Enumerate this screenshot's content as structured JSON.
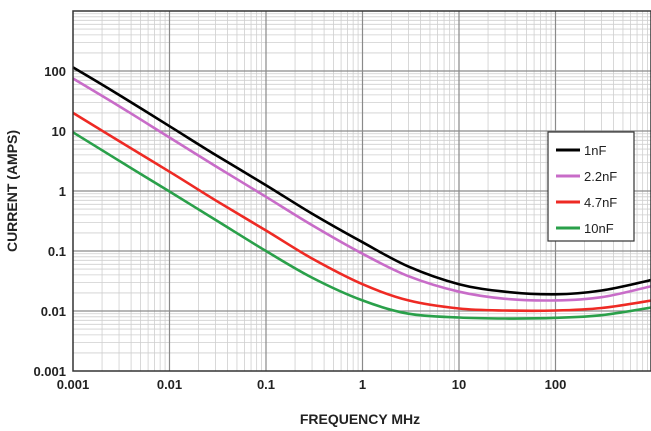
{
  "chart_data": {
    "type": "line",
    "title": "",
    "xlabel": "FREQUENCY MHz",
    "ylabel": "CURRENT (AMPS)",
    "xscale": "log",
    "yscale": "log",
    "xlim": [
      0.001,
      1000
    ],
    "ylim": [
      0.001,
      1000
    ],
    "grid": true,
    "x_ticks": [
      {
        "value": 0.001,
        "label": "0.001"
      },
      {
        "value": 0.01,
        "label": "0.01"
      },
      {
        "value": 0.1,
        "label": "0.1"
      },
      {
        "value": 1,
        "label": "1"
      },
      {
        "value": 10,
        "label": "10"
      },
      {
        "value": 100,
        "label": "100"
      }
    ],
    "y_ticks": [
      {
        "value": 0.001,
        "label": "0.001"
      },
      {
        "value": 0.01,
        "label": "0.01"
      },
      {
        "value": 0.1,
        "label": "0.1"
      },
      {
        "value": 1,
        "label": "1"
      },
      {
        "value": 10,
        "label": "10"
      },
      {
        "value": 100,
        "label": "100"
      }
    ],
    "legend_position": "right",
    "x": [
      0.001,
      0.003,
      0.01,
      0.03,
      0.1,
      0.3,
      1,
      3,
      10,
      30,
      100,
      300,
      1000
    ],
    "series": [
      {
        "name": "1nF",
        "color": "#000000",
        "values": [
          115,
          40,
          12,
          4.0,
          1.25,
          0.42,
          0.14,
          0.055,
          0.028,
          0.021,
          0.019,
          0.022,
          0.033
        ]
      },
      {
        "name": "2.2nF",
        "color": "#c86cc8",
        "values": [
          75,
          26,
          7.8,
          2.6,
          0.8,
          0.27,
          0.09,
          0.038,
          0.021,
          0.016,
          0.015,
          0.017,
          0.026
        ]
      },
      {
        "name": "4.7nF",
        "color": "#ee2a24",
        "values": [
          20,
          6.8,
          2.1,
          0.7,
          0.22,
          0.075,
          0.028,
          0.015,
          0.011,
          0.0102,
          0.0102,
          0.0112,
          0.015
        ]
      },
      {
        "name": "10nF",
        "color": "#2aa04a",
        "values": [
          9.5,
          3.2,
          0.98,
          0.33,
          0.1,
          0.036,
          0.015,
          0.009,
          0.0078,
          0.0075,
          0.0077,
          0.0085,
          0.0115
        ]
      }
    ]
  }
}
